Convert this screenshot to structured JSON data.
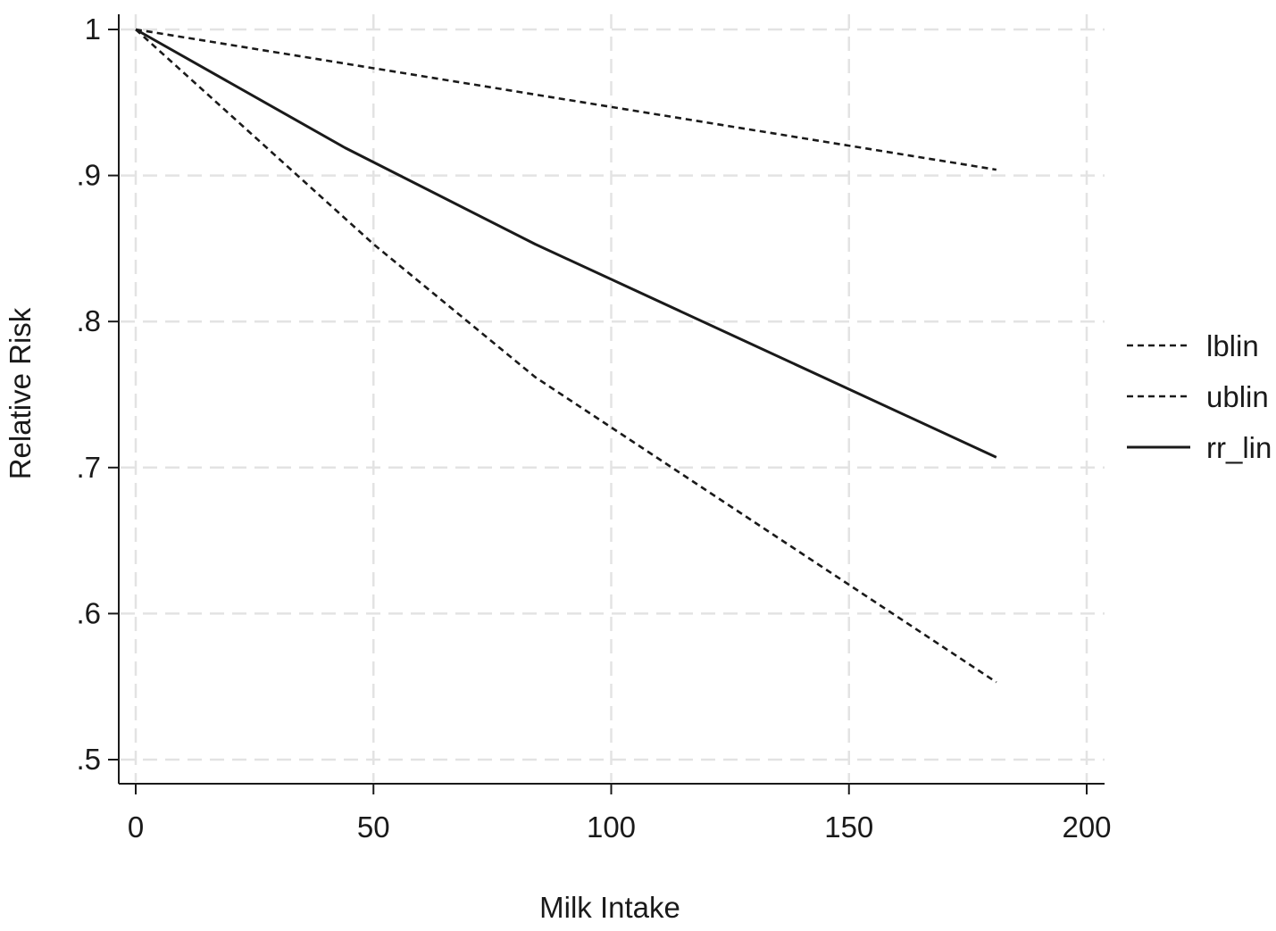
{
  "chart_data": {
    "type": "line",
    "xlabel": "Milk Intake",
    "ylabel": "Relative Risk",
    "xlim": [
      0,
      200
    ],
    "ylim": [
      0.5,
      1.0
    ],
    "xticks": [
      0,
      50,
      100,
      150,
      200
    ],
    "xtick_labels": [
      "0",
      "50",
      "100",
      "150",
      "200"
    ],
    "yticks": [
      0.5,
      0.6,
      0.7,
      0.8,
      0.9,
      1.0
    ],
    "ytick_labels": [
      ".5",
      ".6",
      ".7",
      ".8",
      ".9",
      "1"
    ],
    "grid": true,
    "legend_position": "right",
    "series": [
      {
        "name": "lblin",
        "style": "dashed",
        "color": "#1a1a1a",
        "x": [
          0,
          50,
          84,
          181
        ],
        "y": [
          1.0,
          0.853,
          0.762,
          0.553
        ]
      },
      {
        "name": "ublin",
        "style": "dashed",
        "color": "#1a1a1a",
        "x": [
          0,
          181
        ],
        "y": [
          1.0,
          0.904
        ]
      },
      {
        "name": "rr_lin",
        "style": "solid",
        "color": "#1a1a1a",
        "x": [
          0,
          44,
          84,
          181
        ],
        "y": [
          1.0,
          0.919,
          0.853,
          0.707
        ]
      }
    ]
  }
}
